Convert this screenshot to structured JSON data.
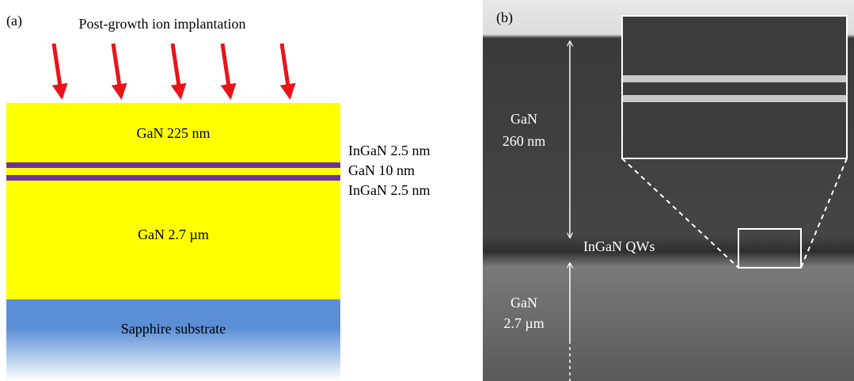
{
  "panel_a": {
    "label": "(a)",
    "title": "Post-growth ion implantation",
    "layers": [
      "GaN 225 nm",
      "GaN 2.7 µm",
      "Sapphire substrate"
    ],
    "side_labels": [
      "InGaN 2.5 nm",
      "GaN 10 nm",
      "InGaN 2.5 nm"
    ]
  },
  "panel_b": {
    "label": "(b)",
    "gan_top": [
      "GaN",
      "260 nm"
    ],
    "qw_label": "InGaN QWs",
    "gan_bottom": [
      "GaN",
      "2.7 µm"
    ]
  }
}
